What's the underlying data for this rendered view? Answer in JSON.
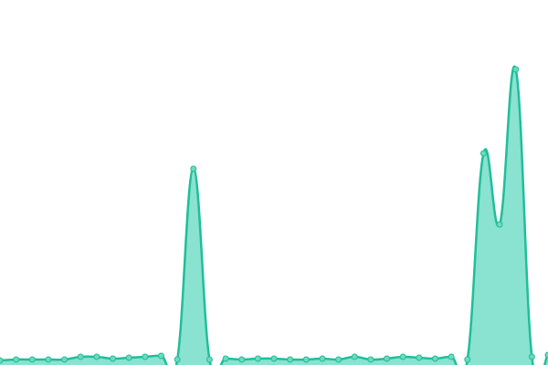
{
  "chart_data": {
    "type": "area",
    "values": [
      5,
      6,
      6,
      6,
      6,
      9,
      9,
      7,
      8,
      9,
      10,
      6,
      215,
      6,
      7,
      6,
      7,
      7,
      6,
      6,
      7,
      6,
      9,
      6,
      7,
      9,
      8,
      7,
      9,
      6,
      232,
      154,
      324,
      9,
      11
    ],
    "ylim": [
      0,
      400
    ],
    "color": "#1fbf98",
    "fill": "#8ae2d0",
    "marker_color": "#6fd8c0"
  }
}
